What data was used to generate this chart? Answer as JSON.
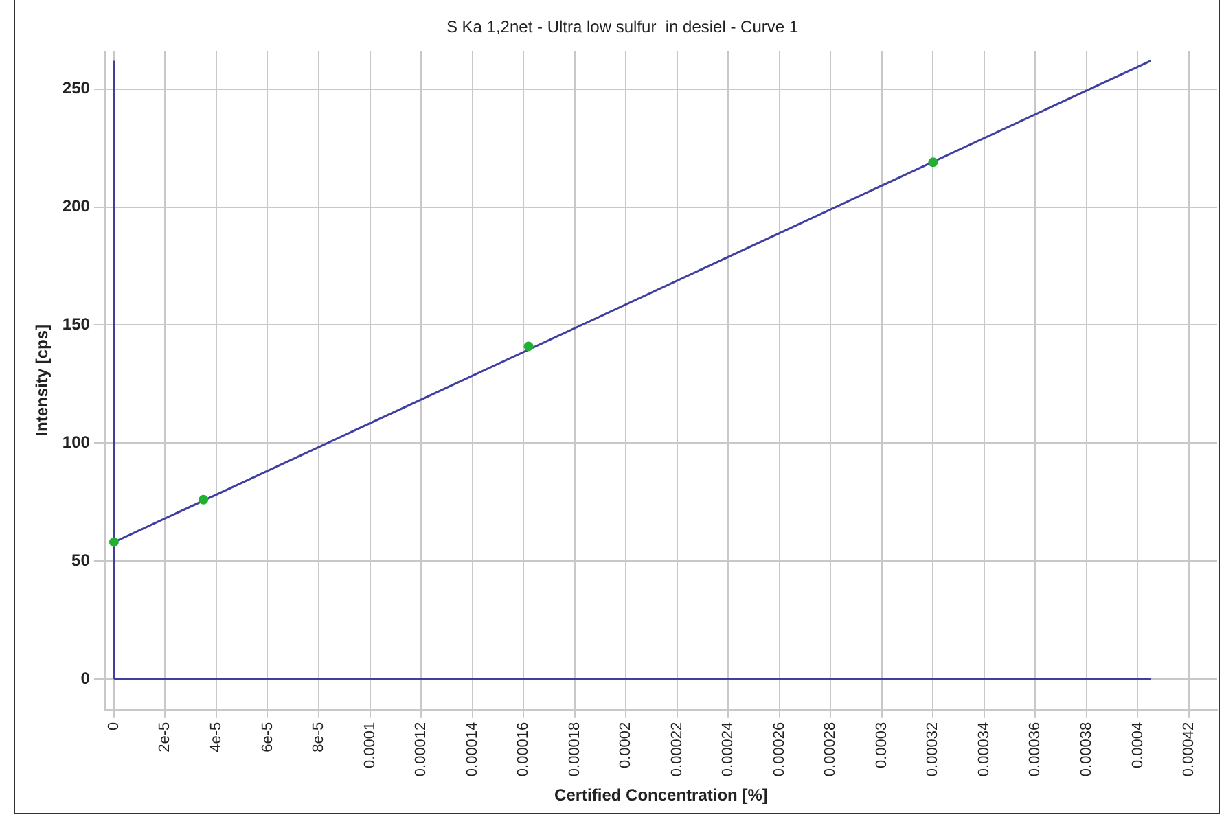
{
  "chart_data": {
    "type": "scatter",
    "title": "S Ka 1,2net - Ultra low sulfur  in desiel - Curve 1",
    "xlabel": "Certified Concentration [%]",
    "ylabel": "Intensity [cps]",
    "xlim": [
      -3.5e-06,
      0.000431
    ],
    "ylim": [
      -13,
      266
    ],
    "xticks": [
      0,
      {
        "value": 2e-05,
        "label": "2e-5"
      },
      {
        "value": 4e-05,
        "label": "4e-5"
      },
      {
        "value": 6e-05,
        "label": "6e-5"
      },
      {
        "value": 8e-05,
        "label": "8e-5"
      },
      0.0001,
      0.00012,
      0.00014,
      0.00016,
      0.00018,
      0.0002,
      0.00022,
      0.00024,
      0.00026,
      0.00028,
      0.0003,
      0.00032,
      0.00034,
      0.00036,
      0.00038,
      0.0004,
      0.00042
    ],
    "yticks": [
      0,
      50,
      100,
      150,
      200,
      250
    ],
    "grid": true,
    "legend": false,
    "series": [
      {
        "type": "line",
        "color": "#3f3fa0",
        "x": [
          0,
          0.000405
        ],
        "values": [
          0,
          0
        ]
      },
      {
        "type": "line",
        "color": "#3f3fa0",
        "x": [
          0,
          0
        ],
        "values": [
          0,
          262
        ]
      },
      {
        "type": "line",
        "color": "#3f3fa0",
        "x": [
          0,
          0.000405
        ],
        "values": [
          58,
          262
        ]
      },
      {
        "color": "#22b033",
        "marker": "circle",
        "x": [
          0,
          3.5e-05,
          0.000162,
          0.00032
        ],
        "values": [
          58,
          76,
          141,
          219
        ]
      }
    ]
  }
}
